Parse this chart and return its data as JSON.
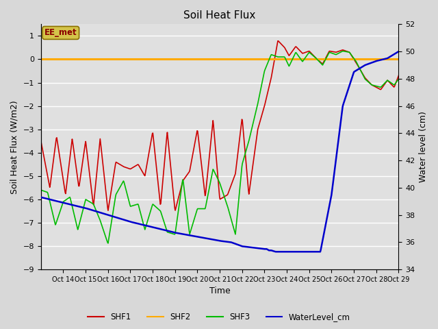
{
  "title": "Soil Heat Flux",
  "xlabel": "Time",
  "ylabel_left": "Soil Heat Flux (W/m2)",
  "ylabel_right": "Water level (cm)",
  "fig_bg_color": "#d8d8d8",
  "plot_bg_color": "#e0e0e0",
  "grid_color": "#ffffff",
  "annotation_text": "EE_met",
  "annotation_bg": "#d4c44a",
  "annotation_border": "#8B7000",
  "x_tick_labels": [
    "Oct 14",
    "Oct 15",
    "Oct 16",
    "Oct 17",
    "Oct 18",
    "Oct 19",
    "Oct 20",
    "Oct 21",
    "Oct 22",
    "Oct 23",
    "Oct 24",
    "Oct 25",
    "Oct 26",
    "Oct 27",
    "Oct 28",
    "Oct 29"
  ],
  "ylim_left": [
    -9.0,
    1.5
  ],
  "ylim_right": [
    34,
    52
  ],
  "yticks_left": [
    1.0,
    0.0,
    -1.0,
    -2.0,
    -3.0,
    -4.0,
    -5.0,
    -6.0,
    -7.0,
    -8.0,
    -9.0
  ],
  "yticks_right": [
    52,
    50,
    48,
    46,
    44,
    42,
    40,
    38,
    36,
    34
  ],
  "shf1_color": "#cc0000",
  "shf2_color": "#ffaa00",
  "shf3_color": "#00bb00",
  "water_color": "#0000cc",
  "legend_labels": [
    "SHF1",
    "SHF2",
    "SHF3",
    "WaterLevel_cm"
  ],
  "shf1_key_x": [
    0,
    0.4,
    0.7,
    1.1,
    1.4,
    1.7,
    2.0,
    2.35,
    2.65,
    3.0,
    3.35,
    3.7,
    4.0,
    4.35,
    4.65,
    5.0,
    5.35,
    5.65,
    6.0,
    6.35,
    6.65,
    7.0,
    7.35,
    7.7,
    8.0,
    8.35,
    8.7,
    9.0,
    9.3,
    9.7,
    10.0,
    10.3,
    10.6,
    10.9,
    11.1,
    11.4,
    11.7,
    12.0,
    12.3,
    12.6,
    12.9,
    13.2,
    13.5,
    13.8,
    14.1,
    14.5,
    14.8,
    15.2,
    15.5,
    15.8,
    16.0
  ],
  "shf1_key_y": [
    -3.5,
    -5.5,
    -3.3,
    -5.8,
    -3.4,
    -5.5,
    -3.5,
    -6.3,
    -3.4,
    -6.5,
    -4.4,
    -4.6,
    -4.7,
    -4.5,
    -5.0,
    -3.1,
    -6.3,
    -3.1,
    -6.5,
    -5.2,
    -4.8,
    -3.0,
    -5.9,
    -2.6,
    -6.0,
    -5.8,
    -4.9,
    -2.5,
    -5.8,
    -3.0,
    -2.0,
    -0.8,
    0.8,
    0.5,
    0.15,
    0.55,
    0.25,
    0.35,
    0.05,
    -0.2,
    0.35,
    0.3,
    0.4,
    0.3,
    -0.15,
    -0.8,
    -1.1,
    -1.3,
    -0.9,
    -1.2,
    -0.7
  ],
  "shf3_key_x": [
    0,
    0.3,
    0.65,
    1.0,
    1.3,
    1.65,
    2.0,
    2.35,
    2.65,
    3.0,
    3.35,
    3.7,
    4.0,
    4.35,
    4.65,
    5.0,
    5.35,
    5.65,
    6.0,
    6.35,
    6.65,
    7.0,
    7.35,
    7.7,
    8.0,
    8.35,
    8.7,
    9.0,
    9.3,
    9.7,
    10.0,
    10.3,
    10.6,
    10.9,
    11.1,
    11.4,
    11.7,
    12.0,
    12.3,
    12.6,
    12.9,
    13.2,
    13.5,
    13.8,
    14.1,
    14.5,
    14.8,
    15.2,
    15.5,
    15.8,
    16.0
  ],
  "shf3_key_y": [
    -5.6,
    -5.7,
    -7.1,
    -6.1,
    -5.9,
    -7.3,
    -6.0,
    -6.2,
    -6.9,
    -7.9,
    -5.8,
    -5.2,
    -6.3,
    -6.2,
    -7.3,
    -6.2,
    -6.5,
    -7.4,
    -7.5,
    -5.1,
    -7.5,
    -6.4,
    -6.4,
    -4.7,
    -5.3,
    -6.3,
    -7.5,
    -4.5,
    -3.5,
    -1.9,
    -0.5,
    0.2,
    0.1,
    0.1,
    -0.3,
    0.3,
    -0.1,
    0.3,
    0.05,
    -0.25,
    0.3,
    0.2,
    0.35,
    0.3,
    -0.1,
    -0.85,
    -1.1,
    -1.2,
    -0.9,
    -1.1,
    -0.85
  ],
  "water_key_x": [
    0,
    1,
    2,
    3,
    4,
    5,
    6,
    7,
    8,
    8.5,
    9,
    9.5,
    10,
    10.1,
    10.2,
    10.3,
    10.4,
    10.5,
    10.55,
    10.6,
    10.7,
    10.8,
    11.0,
    11.5,
    12.0,
    12.5,
    13.0,
    13.5,
    14.0,
    14.5,
    15.0,
    15.5,
    16.0
  ],
  "water_key_y": [
    39.3,
    38.9,
    38.5,
    38.0,
    37.5,
    37.1,
    36.7,
    36.4,
    36.1,
    36.0,
    35.7,
    35.6,
    35.5,
    35.5,
    35.4,
    35.4,
    35.35,
    35.3,
    35.3,
    35.3,
    35.3,
    35.3,
    35.3,
    35.3,
    35.3,
    35.3,
    39.5,
    46.0,
    48.5,
    49.0,
    49.3,
    49.5,
    50.0
  ]
}
